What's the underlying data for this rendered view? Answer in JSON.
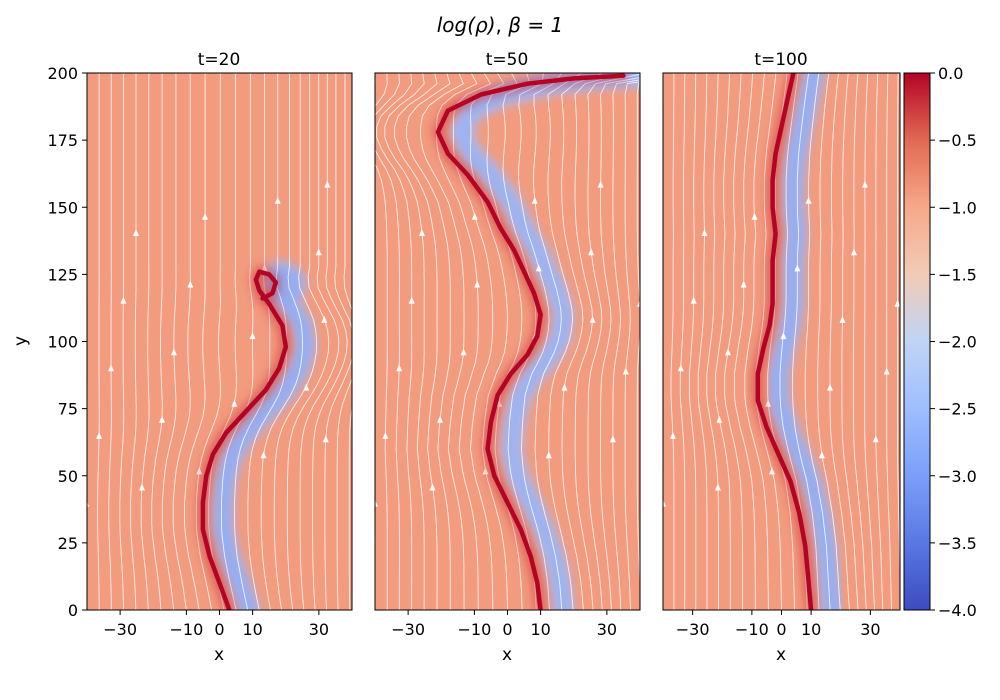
{
  "chart_data": {
    "type": "heatmap",
    "title": "log(ρ), β = 1",
    "title_parts": {
      "func": "log(ρ)",
      "beta": "β = 1"
    },
    "colormap": "coolwarm",
    "colorbar": {
      "range": [
        -4.0,
        0.0
      ],
      "ticks": [
        "0.0",
        "−0.5",
        "−1.0",
        "−1.5",
        "−2.0",
        "−2.5",
        "−3.0",
        "−3.5",
        "−4.0"
      ],
      "tick_values": [
        0.0,
        -0.5,
        -1.0,
        -1.5,
        -2.0,
        -2.5,
        -3.0,
        -3.5,
        -4.0
      ]
    },
    "streamlines": {
      "color": "#ffffff",
      "field": "magnetic field",
      "direction": "up"
    },
    "background_value": -0.9,
    "xlim": [
      -40,
      40
    ],
    "ylim": [
      0,
      200
    ],
    "xlabel": "x",
    "ylabel": "y",
    "xticks": [
      -30,
      -10,
      0,
      10,
      30
    ],
    "yticks": [
      0,
      25,
      50,
      75,
      100,
      125,
      150,
      175,
      200
    ],
    "xtick_labels": [
      "−30",
      "−10",
      "0",
      "10",
      "30"
    ],
    "ytick_labels": [
      "0",
      "25",
      "50",
      "75",
      "100",
      "125",
      "150",
      "175",
      "200"
    ],
    "panels": [
      {
        "title": "t=20",
        "interface": [
          [
            3,
            0
          ],
          [
            0,
            10
          ],
          [
            -3,
            20
          ],
          [
            -5,
            30
          ],
          [
            -5,
            40
          ],
          [
            -4,
            50
          ],
          [
            -2,
            58
          ],
          [
            2,
            66
          ],
          [
            8,
            74
          ],
          [
            14,
            82
          ],
          [
            18,
            90
          ],
          [
            20,
            98
          ],
          [
            19,
            106
          ],
          [
            15,
            114
          ],
          [
            12,
            119
          ],
          [
            11,
            123
          ],
          [
            12,
            126
          ],
          [
            15,
            125
          ],
          [
            17,
            122
          ],
          [
            16,
            118
          ],
          [
            13,
            116
          ]
        ],
        "low_density_band": {
          "offset_x": 6,
          "value": -2.6
        }
      },
      {
        "title": "t=50",
        "interface": [
          [
            10,
            0
          ],
          [
            9,
            10
          ],
          [
            7,
            20
          ],
          [
            4,
            30
          ],
          [
            0,
            40
          ],
          [
            -4,
            50
          ],
          [
            -6,
            60
          ],
          [
            -5,
            70
          ],
          [
            -3,
            80
          ],
          [
            1,
            88
          ],
          [
            6,
            95
          ],
          [
            9,
            102
          ],
          [
            10,
            110
          ],
          [
            8,
            118
          ],
          [
            5,
            126
          ],
          [
            2,
            134
          ],
          [
            -2,
            142
          ],
          [
            -6,
            152
          ],
          [
            -12,
            162
          ],
          [
            -18,
            170
          ],
          [
            -21,
            178
          ],
          [
            -18,
            186
          ],
          [
            -8,
            192
          ],
          [
            6,
            196
          ],
          [
            20,
            198
          ],
          [
            35,
            199
          ]
        ],
        "low_density_band": {
          "offset_x": 7,
          "value": -2.5
        }
      },
      {
        "title": "t=100",
        "interface": [
          [
            10,
            0
          ],
          [
            9,
            12
          ],
          [
            8,
            24
          ],
          [
            6,
            36
          ],
          [
            3,
            48
          ],
          [
            -1,
            58
          ],
          [
            -5,
            68
          ],
          [
            -8,
            78
          ],
          [
            -8,
            88
          ],
          [
            -6,
            98
          ],
          [
            -4,
            106
          ],
          [
            -3,
            114
          ],
          [
            -3,
            122
          ],
          [
            -3,
            130
          ],
          [
            -2,
            140
          ],
          [
            -3,
            150
          ],
          [
            -3,
            160
          ],
          [
            -2,
            170
          ],
          [
            0,
            180
          ],
          [
            2,
            190
          ],
          [
            4,
            200
          ]
        ],
        "low_density_band": {
          "offset_x": 7,
          "value": -2.6
        }
      }
    ]
  }
}
